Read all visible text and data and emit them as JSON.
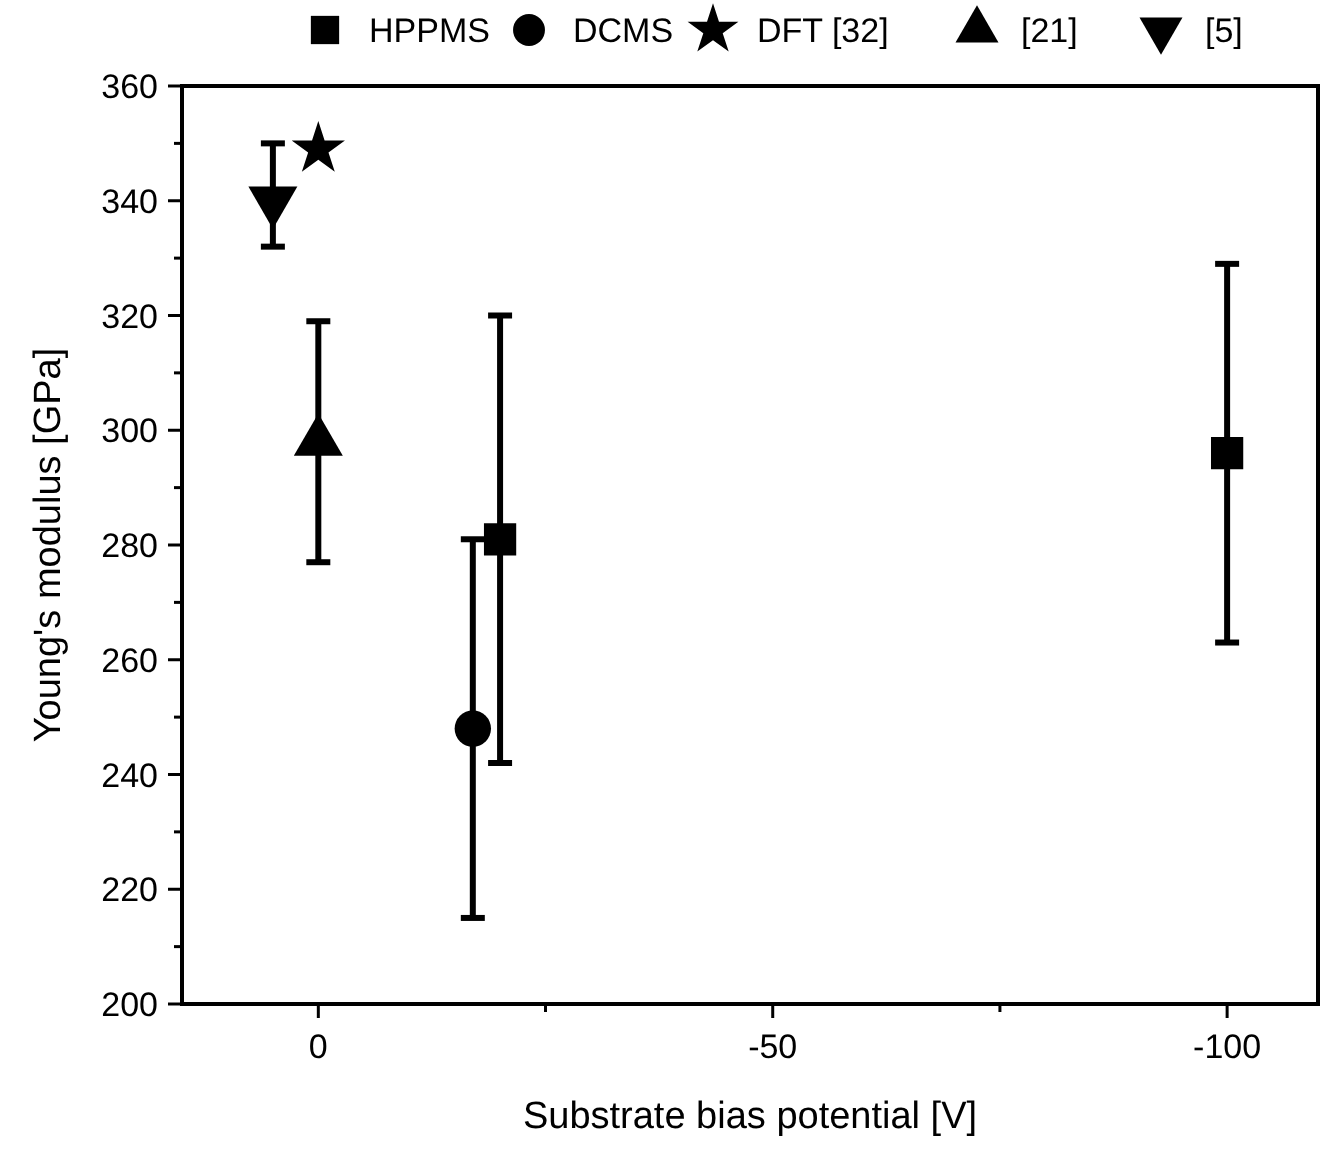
{
  "chart_data": {
    "type": "scatter",
    "xlabel": "Substrate bias potential [V]",
    "ylabel": "Young's modulus [GPa]",
    "xlim": [
      15,
      -110
    ],
    "xticks": [
      0,
      {
        "value": -25,
        "label": null
      },
      -50,
      {
        "value": -75,
        "label": null
      },
      -100
    ],
    "ylim": [
      200,
      360
    ],
    "yticks": [
      200,
      {
        "value": 210,
        "label": null
      },
      220,
      {
        "value": 230,
        "label": null
      },
      240,
      {
        "value": 250,
        "label": null
      },
      260,
      {
        "value": 270,
        "label": null
      },
      280,
      {
        "value": 290,
        "label": null
      },
      300,
      {
        "value": 310,
        "label": null
      },
      320,
      {
        "value": 330,
        "label": null
      },
      340,
      {
        "value": 350,
        "label": null
      },
      360
    ],
    "legend": "top",
    "grid": false,
    "series": [
      {
        "name": "HPPMS",
        "color": "#000000",
        "marker": "square",
        "x": [
          -20,
          -100
        ],
        "values": [
          281,
          296
        ],
        "errors": [
          [
            242,
            320
          ],
          [
            263,
            329
          ]
        ]
      },
      {
        "name": "DCMS",
        "color": "#000000",
        "marker": "circle",
        "x": [
          -17
        ],
        "values": [
          248
        ],
        "errors": [
          [
            215,
            281
          ]
        ]
      },
      {
        "name": "DFT [32]",
        "color": "#000000",
        "marker": "star",
        "x": [
          0
        ],
        "values": [
          349
        ]
      },
      {
        "name": "[21]",
        "color": "#000000",
        "marker": "triangle",
        "x": [
          0
        ],
        "values": [
          298
        ],
        "errors": [
          [
            277,
            319
          ]
        ]
      },
      {
        "name": "[5]",
        "color": "#000000",
        "marker": "triangle-down",
        "x": [
          5
        ],
        "values": [
          340
        ],
        "errors": [
          [
            332,
            350
          ]
        ]
      }
    ]
  }
}
